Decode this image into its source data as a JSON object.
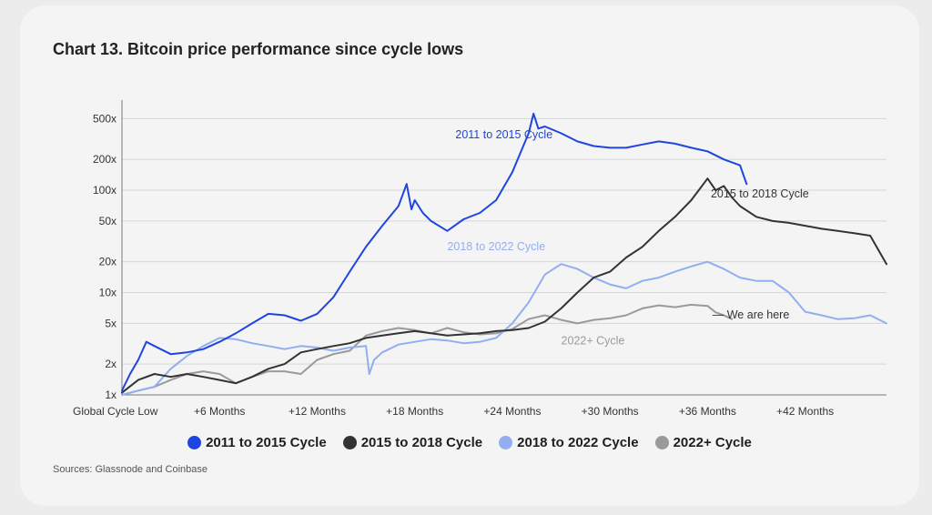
{
  "chart_data": {
    "type": "line",
    "title": "Chart 13. Bitcoin price performance since cycle lows",
    "xlabel": "",
    "ylabel": "",
    "x_unit": "months since global cycle low",
    "xlim": [
      0,
      47
    ],
    "ylim": [
      1,
      700
    ],
    "y_scale": "log",
    "x_ticks": [
      {
        "value": 0,
        "label": "Global Cycle Low"
      },
      {
        "value": 6,
        "label": "+6 Months"
      },
      {
        "value": 12,
        "label": "+12 Months"
      },
      {
        "value": 18,
        "label": "+18 Months"
      },
      {
        "value": 24,
        "label": "+24 Months"
      },
      {
        "value": 30,
        "label": "+30 Months"
      },
      {
        "value": 36,
        "label": "+36 Months"
      },
      {
        "value": 42,
        "label": "+42 Months"
      }
    ],
    "y_ticks": [
      {
        "value": 1,
        "label": "1x"
      },
      {
        "value": 2,
        "label": "2x"
      },
      {
        "value": 5,
        "label": "5x"
      },
      {
        "value": 10,
        "label": "10x"
      },
      {
        "value": 20,
        "label": "20x"
      },
      {
        "value": 50,
        "label": "50x"
      },
      {
        "value": 100,
        "label": "100x"
      },
      {
        "value": 200,
        "label": "200x"
      },
      {
        "value": 500,
        "label": "500x"
      }
    ],
    "grid": true,
    "legend_position": "bottom",
    "series": [
      {
        "name": "2011 to 2015 Cycle",
        "color": "#1f45e0",
        "x": [
          0,
          0.5,
          1,
          1.5,
          2,
          3,
          4,
          5,
          6,
          7,
          8,
          9,
          10,
          11,
          12,
          13,
          14,
          15,
          16,
          17,
          17.5,
          17.8,
          18,
          18.5,
          19,
          20,
          21,
          22,
          23,
          24,
          25,
          25.3,
          25.6,
          26,
          27,
          28,
          29,
          30,
          31,
          32,
          33,
          34,
          35,
          36,
          37,
          38,
          38.4
        ],
        "y": [
          1.1,
          1.6,
          2.2,
          3.3,
          3.0,
          2.5,
          2.6,
          2.8,
          3.3,
          4.0,
          5.0,
          6.2,
          6.0,
          5.3,
          6.2,
          9.0,
          16,
          28,
          45,
          70,
          115,
          65,
          80,
          60,
          50,
          40,
          52,
          60,
          80,
          150,
          360,
          560,
          400,
          420,
          360,
          300,
          270,
          260,
          260,
          280,
          300,
          285,
          260,
          240,
          200,
          175,
          115
        ]
      },
      {
        "name": "2015 to 2018 Cycle",
        "color": "#333333",
        "x": [
          0,
          1,
          2,
          3,
          4,
          5,
          6,
          7,
          8,
          9,
          10,
          11,
          12,
          13,
          14,
          15,
          16,
          17,
          18,
          19,
          20,
          21,
          22,
          23,
          24,
          25,
          26,
          27,
          28,
          29,
          30,
          31,
          32,
          33,
          34,
          35,
          36,
          36.5,
          37,
          37.5,
          38,
          39,
          40,
          41,
          42,
          43,
          44,
          45,
          46,
          47
        ],
        "y": [
          1.05,
          1.4,
          1.6,
          1.5,
          1.6,
          1.5,
          1.4,
          1.3,
          1.5,
          1.8,
          2.0,
          2.6,
          2.8,
          3.0,
          3.2,
          3.6,
          3.8,
          4.0,
          4.2,
          4.0,
          3.8,
          3.9,
          4.0,
          4.2,
          4.3,
          4.5,
          5.2,
          7.0,
          10,
          14,
          16,
          22,
          28,
          40,
          55,
          80,
          130,
          100,
          110,
          85,
          70,
          55,
          50,
          48,
          45,
          42,
          40,
          38,
          36,
          19
        ]
      },
      {
        "name": "2018 to 2022 Cycle",
        "color": "#93aef0",
        "x": [
          0,
          1,
          2,
          3,
          4,
          5,
          6,
          7,
          8,
          9,
          10,
          11,
          12,
          13,
          14,
          15,
          15.2,
          15.5,
          16,
          17,
          18,
          19,
          20,
          21,
          22,
          23,
          24,
          25,
          26,
          27,
          28,
          29,
          30,
          31,
          32,
          33,
          34,
          35,
          36,
          37,
          38,
          39,
          40,
          41,
          42,
          43,
          44,
          45,
          46,
          47
        ],
        "y": [
          1.0,
          1.1,
          1.2,
          1.8,
          2.4,
          3.0,
          3.6,
          3.5,
          3.2,
          3.0,
          2.8,
          3.0,
          2.9,
          2.7,
          2.9,
          3.0,
          1.6,
          2.2,
          2.6,
          3.1,
          3.3,
          3.5,
          3.4,
          3.2,
          3.3,
          3.6,
          5.0,
          8.0,
          15,
          19,
          17,
          14,
          12,
          11,
          13,
          14,
          16,
          18,
          20,
          17,
          14,
          13,
          13,
          10,
          6.5,
          6.0,
          5.5,
          5.6,
          6.0,
          5.0
        ]
      },
      {
        "name": "2022+ Cycle",
        "color": "#9a9a9a",
        "x": [
          0,
          1,
          2,
          3,
          4,
          5,
          6,
          7,
          8,
          9,
          10,
          11,
          12,
          13,
          14,
          15,
          16,
          17,
          18,
          19,
          20,
          21,
          22,
          23,
          24,
          25,
          26,
          27,
          28,
          29,
          30,
          31,
          32,
          33,
          34,
          35,
          36,
          36.5,
          37,
          37.5
        ],
        "y": [
          1.0,
          1.1,
          1.2,
          1.4,
          1.6,
          1.7,
          1.6,
          1.3,
          1.5,
          1.7,
          1.7,
          1.6,
          2.2,
          2.5,
          2.7,
          3.8,
          4.2,
          4.5,
          4.3,
          4.0,
          4.5,
          4.1,
          3.9,
          4.0,
          4.4,
          5.5,
          6.0,
          5.4,
          5.0,
          5.4,
          5.6,
          6.0,
          7.0,
          7.5,
          7.2,
          7.6,
          7.4,
          6.4,
          6.0,
          5.5
        ]
      }
    ],
    "annotations": [
      {
        "text": "2011 to 2015 Cycle",
        "x": 20.5,
        "y": 320,
        "series": 0
      },
      {
        "text": "2015 to 2018 Cycle",
        "x": 36.2,
        "y": 85,
        "series": 1
      },
      {
        "text": "2018 to 2022 Cycle",
        "x": 20.0,
        "y": 26,
        "series": 2
      },
      {
        "text": "2022+ Cycle",
        "x": 27.0,
        "y": 3.1,
        "series": 3
      },
      {
        "text": "— We are here",
        "x": 36.3,
        "y": 5.6,
        "series": 3
      }
    ]
  },
  "sources": "Sources: Glassnode and Coinbase"
}
